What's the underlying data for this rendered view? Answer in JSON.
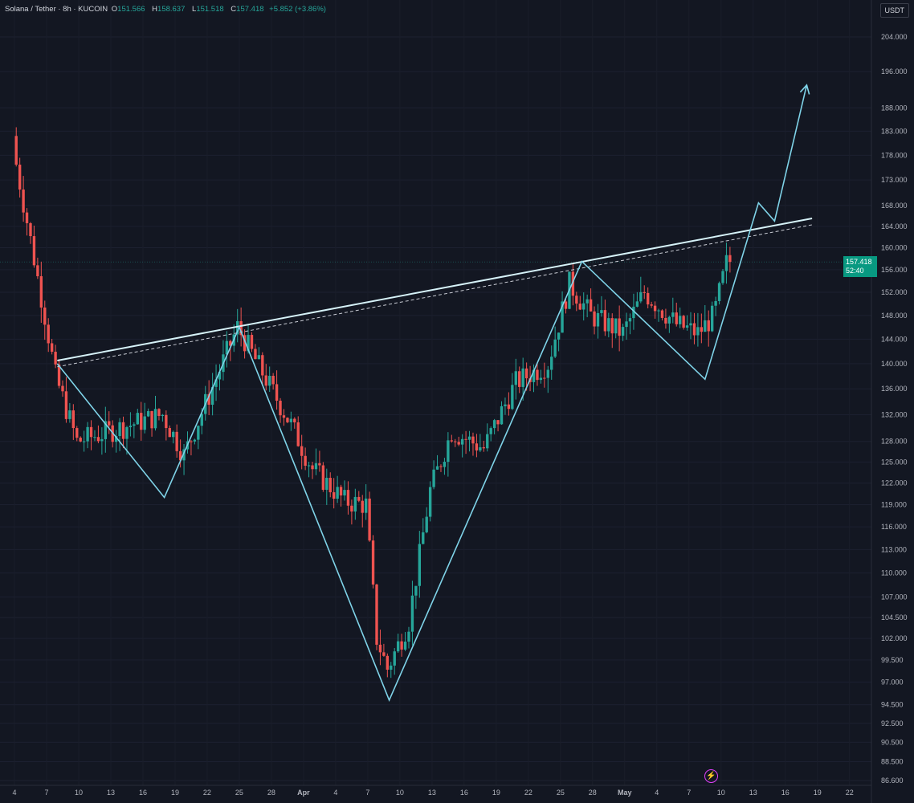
{
  "header": {
    "symbol": "Solana / Tether · 8h · KUCOIN",
    "open_label": "O",
    "open": "151.566",
    "high_label": "H",
    "high": "158.637",
    "low_label": "L",
    "low": "151.518",
    "close_label": "C",
    "close": "157.418",
    "change": "+5.852 (+3.86%)"
  },
  "currency_badge": "USDT",
  "last_price": {
    "price": "157.418",
    "countdown": "52:40"
  },
  "colors": {
    "background": "#131722",
    "up": "#26a69a",
    "down": "#ef5350",
    "pattern_line": "#7fd3e8",
    "trendline": "#d6f2f8",
    "last_price_bg": "#089981"
  },
  "chart_data": {
    "type": "candlestick",
    "timeframe": "8h",
    "y_scale": "log",
    "ylim": [
      86.6,
      204.0
    ],
    "y_ticks": [
      "204.000",
      "196.000",
      "188.000",
      "183.000",
      "178.000",
      "173.000",
      "168.000",
      "164.000",
      "160.000",
      "156.000",
      "152.000",
      "148.000",
      "144.000",
      "140.000",
      "136.000",
      "132.000",
      "128.000",
      "125.000",
      "122.000",
      "119.000",
      "116.000",
      "113.000",
      "110.000",
      "107.000",
      "104.500",
      "102.000",
      "99.500",
      "97.000",
      "94.500",
      "92.500",
      "90.500",
      "88.500",
      "86.600"
    ],
    "x_ticks": [
      "4",
      "7",
      "10",
      "13",
      "16",
      "19",
      "22",
      "25",
      "28",
      "Apr",
      "4",
      "7",
      "10",
      "13",
      "16",
      "19",
      "22",
      "25",
      "28",
      "May",
      "4",
      "7",
      "10",
      "13",
      "16",
      "19",
      "22"
    ],
    "keypoints": [
      {
        "day": 0,
        "price": 180.0
      },
      {
        "day": 3,
        "price": 148.0
      },
      {
        "day": 4,
        "price": 138.0
      },
      {
        "day": 6,
        "price": 128.0
      },
      {
        "day": 10,
        "price": 130.0
      },
      {
        "day": 14,
        "price": 132.0
      },
      {
        "day": 16,
        "price": 126.0
      },
      {
        "day": 21,
        "price": 146.0
      },
      {
        "day": 26,
        "price": 130.5
      },
      {
        "day": 28,
        "price": 124.0
      },
      {
        "day": 31,
        "price": 119.5
      },
      {
        "day": 33,
        "price": 119.0
      },
      {
        "day": 34,
        "price": 102.0
      },
      {
        "day": 35,
        "price": 98.5
      },
      {
        "day": 37,
        "price": 104.0
      },
      {
        "day": 39,
        "price": 121.0
      },
      {
        "day": 41,
        "price": 129.5
      },
      {
        "day": 44,
        "price": 127.0
      },
      {
        "day": 47,
        "price": 137.0
      },
      {
        "day": 50,
        "price": 140.0
      },
      {
        "day": 52,
        "price": 153.5
      },
      {
        "day": 54,
        "price": 148.0
      },
      {
        "day": 57,
        "price": 145.0
      },
      {
        "day": 59,
        "price": 152.0
      },
      {
        "day": 62,
        "price": 146.5
      },
      {
        "day": 64,
        "price": 145.0
      },
      {
        "day": 65.5,
        "price": 148.0
      },
      {
        "day": 66.7,
        "price": 157.4
      }
    ],
    "trendline": {
      "start": {
        "day": 4,
        "price": 140.5
      },
      "end": {
        "day": 74.5,
        "price": 165.5
      }
    },
    "trendline_dashed": {
      "start": {
        "day": 4,
        "price": 139.5
      },
      "end": {
        "day": 74.5,
        "price": 164.3
      }
    },
    "pattern_path": [
      {
        "day": 4,
        "price": 140.0
      },
      {
        "day": 14,
        "price": 120.0
      },
      {
        "day": 21,
        "price": 146.0
      },
      {
        "day": 35,
        "price": 95.0
      },
      {
        "day": 53,
        "price": 157.5
      },
      {
        "day": 64.5,
        "price": 137.5
      },
      {
        "day": 69.5,
        "price": 168.5
      },
      {
        "day": 71,
        "price": 165.0
      },
      {
        "day": 74,
        "price": 193.0
      }
    ],
    "projection_arrow": {
      "day": 74,
      "price": 193.0
    }
  }
}
